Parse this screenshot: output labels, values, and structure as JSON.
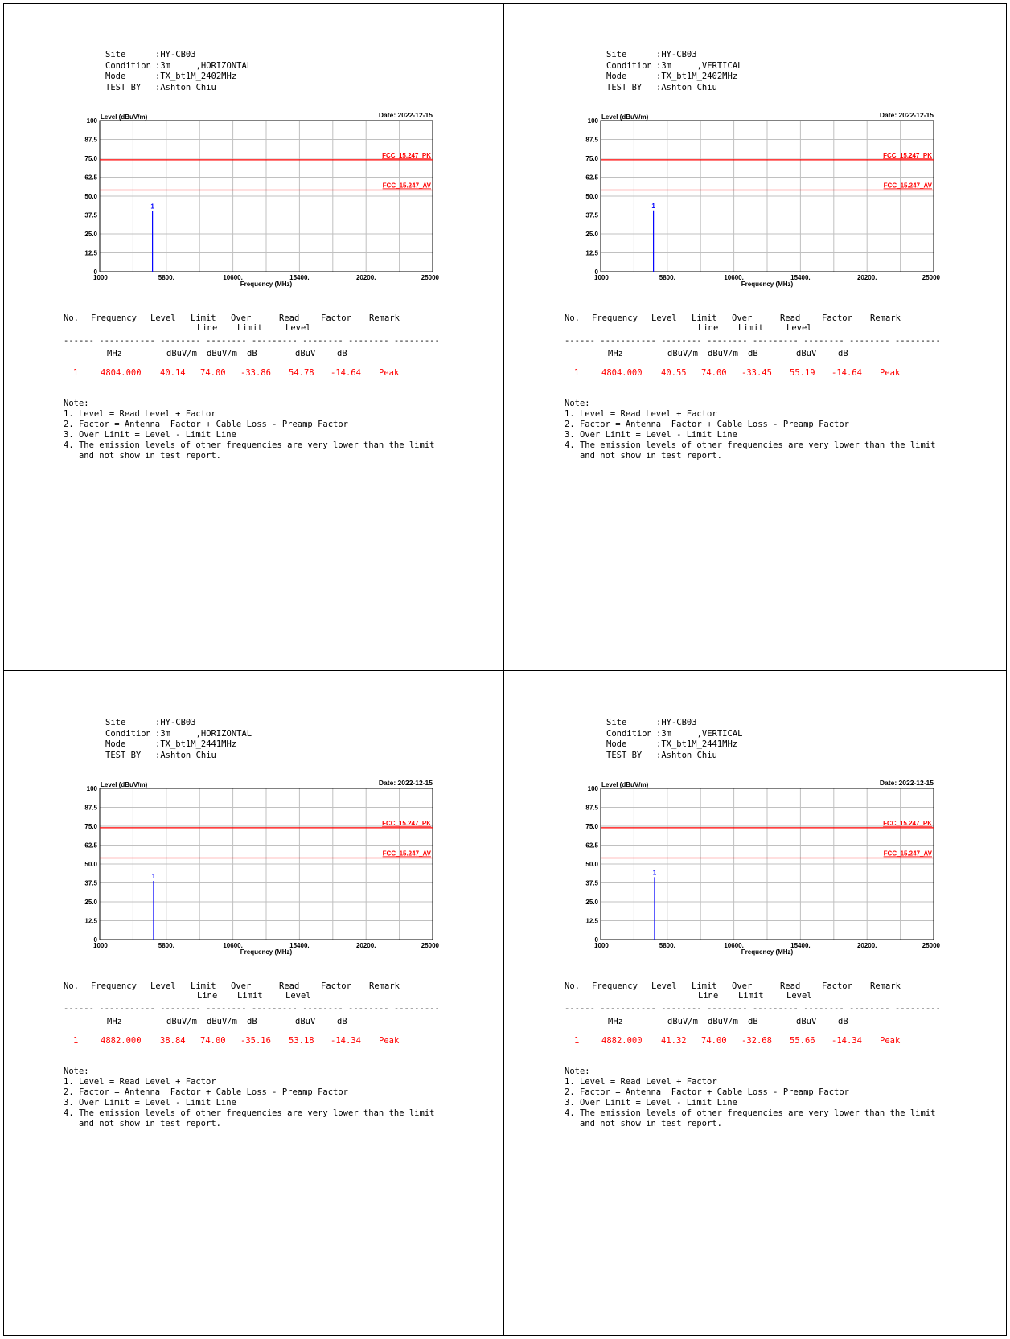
{
  "colors": {
    "limit": "#ff0000",
    "trace": "#0000ff",
    "grid": "#c0c0c0"
  },
  "header_labels": {
    "site": "Site",
    "condition": "Condition",
    "mode": "Mode",
    "test_by": "TEST BY"
  },
  "table": {
    "headers": [
      {
        "l1": "No.",
        "l2": ""
      },
      {
        "l1": "Frequency",
        "l2": ""
      },
      {
        "l1": "Level",
        "l2": ""
      },
      {
        "l1": "Limit",
        "l2": "Line"
      },
      {
        "l1": "Over",
        "l2": "Limit"
      },
      {
        "l1": "Read",
        "l2": "Level"
      },
      {
        "l1": "Factor",
        "l2": ""
      },
      {
        "l1": "Remark",
        "l2": ""
      }
    ],
    "dashes": "------ ----------- -------- -------- --------- -------- -------- ---------",
    "units": [
      "",
      "MHz",
      "dBuV/m",
      "dBuV/m",
      "dB",
      "dBuV",
      "dB",
      ""
    ]
  },
  "notes": [
    "Note:",
    "1. Level = Read Level + Factor",
    "2. Factor = Antenna  Factor + Cable Loss - Preamp Factor",
    "3. Over Limit = Level - Limit Line",
    "4. The emission levels of other frequencies are very lower than the limit",
    "   and not show in test report."
  ],
  "panels": [
    {
      "header": {
        "site": ":HY-CB03",
        "condition": ":3m     ,HORIZONTAL",
        "mode": ":TX_bt1M_2402MHz",
        "test_by": ":Ashton Chiu"
      },
      "row": [
        "1",
        "4804.000",
        "40.14",
        "74.00",
        "-33.86",
        "54.78",
        "-14.64",
        "Peak"
      ],
      "chart_data": {
        "type": "line",
        "ylabel": "Level (dBuV/m)",
        "xlabel": "Frequency (MHz)",
        "date": "Date: 2022-12-15",
        "ylim": [
          0,
          100
        ],
        "xlim": [
          1000,
          25000
        ],
        "yticks": [
          "0",
          "12.5",
          "25.0",
          "37.5",
          "50.0",
          "62.5",
          "75.0",
          "87.5",
          "100"
        ],
        "xticks": [
          "1000",
          "5800.",
          "10600.",
          "15400.",
          "20200.",
          "25000"
        ],
        "grid": true,
        "limits": [
          {
            "name": "FCC_15.247_PK",
            "value": 74
          },
          {
            "name": "FCC_15.247_AV",
            "value": 54
          }
        ],
        "markers": [
          {
            "label": "1",
            "x": 4804,
            "y": 40.14
          }
        ]
      }
    },
    {
      "header": {
        "site": ":HY-CB03",
        "condition": ":3m     ,VERTICAL",
        "mode": ":TX_bt1M_2402MHz",
        "test_by": ":Ashton Chiu"
      },
      "row": [
        "1",
        "4804.000",
        "40.55",
        "74.00",
        "-33.45",
        "55.19",
        "-14.64",
        "Peak"
      ],
      "chart_data": {
        "type": "line",
        "ylabel": "Level (dBuV/m)",
        "xlabel": "Frequency (MHz)",
        "date": "Date: 2022-12-15",
        "ylim": [
          0,
          100
        ],
        "xlim": [
          1000,
          25000
        ],
        "yticks": [
          "0",
          "12.5",
          "25.0",
          "37.5",
          "50.0",
          "62.5",
          "75.0",
          "87.5",
          "100"
        ],
        "xticks": [
          "1000",
          "5800.",
          "10600.",
          "15400.",
          "20200.",
          "25000"
        ],
        "grid": true,
        "limits": [
          {
            "name": "FCC_15.247_PK",
            "value": 74
          },
          {
            "name": "FCC_15.247_AV",
            "value": 54
          }
        ],
        "markers": [
          {
            "label": "1",
            "x": 4804,
            "y": 40.55
          }
        ]
      }
    },
    {
      "header": {
        "site": ":HY-CB03",
        "condition": ":3m     ,HORIZONTAL",
        "mode": ":TX_bt1M_2441MHz",
        "test_by": ":Ashton Chiu"
      },
      "row": [
        "1",
        "4882.000",
        "38.84",
        "74.00",
        "-35.16",
        "53.18",
        "-14.34",
        "Peak"
      ],
      "chart_data": {
        "type": "line",
        "ylabel": "Level (dBuV/m)",
        "xlabel": "Frequency (MHz)",
        "date": "Date: 2022-12-15",
        "ylim": [
          0,
          100
        ],
        "xlim": [
          1000,
          25000
        ],
        "yticks": [
          "0",
          "12.5",
          "25.0",
          "37.5",
          "50.0",
          "62.5",
          "75.0",
          "87.5",
          "100"
        ],
        "xticks": [
          "1000",
          "5800.",
          "10600.",
          "15400.",
          "20200.",
          "25000"
        ],
        "grid": true,
        "limits": [
          {
            "name": "FCC_15.247_PK",
            "value": 74
          },
          {
            "name": "FCC_15.247_AV",
            "value": 54
          }
        ],
        "markers": [
          {
            "label": "1",
            "x": 4882,
            "y": 38.84
          }
        ]
      }
    },
    {
      "header": {
        "site": ":HY-CB03",
        "condition": ":3m     ,VERTICAL",
        "mode": ":TX_bt1M_2441MHz",
        "test_by": ":Ashton Chiu"
      },
      "row": [
        "1",
        "4882.000",
        "41.32",
        "74.00",
        "-32.68",
        "55.66",
        "-14.34",
        "Peak"
      ],
      "chart_data": {
        "type": "line",
        "ylabel": "Level (dBuV/m)",
        "xlabel": "Frequency (MHz)",
        "date": "Date: 2022-12-15",
        "ylim": [
          0,
          100
        ],
        "xlim": [
          1000,
          25000
        ],
        "yticks": [
          "0",
          "12.5",
          "25.0",
          "37.5",
          "50.0",
          "62.5",
          "75.0",
          "87.5",
          "100"
        ],
        "xticks": [
          "1000",
          "5800.",
          "10600.",
          "15400.",
          "20200.",
          "25000"
        ],
        "grid": true,
        "limits": [
          {
            "name": "FCC_15.247_PK",
            "value": 74
          },
          {
            "name": "FCC_15.247_AV",
            "value": 54
          }
        ],
        "markers": [
          {
            "label": "1",
            "x": 4882,
            "y": 41.32
          }
        ]
      }
    }
  ]
}
